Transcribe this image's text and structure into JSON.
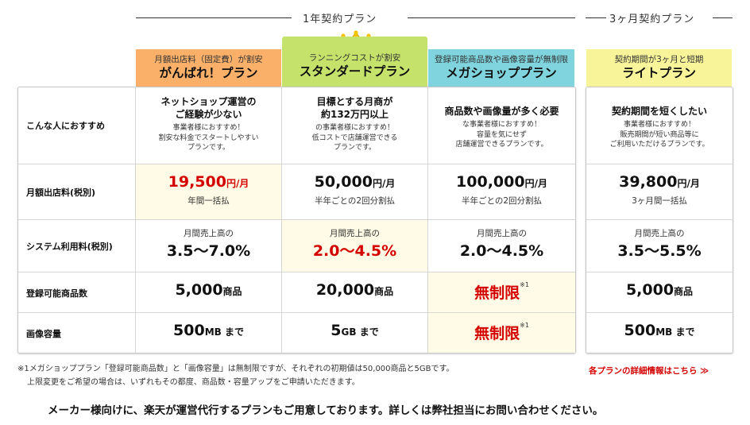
{
  "groups": {
    "annual": "1年契約プラン",
    "three_month": "3ヶ月契約プラン"
  },
  "colors": {
    "ganbare": "#fbb06a",
    "standard": "#c5e36b",
    "mega": "#7fd4dd",
    "light": "#f8f49a",
    "highlight": "#fffbe6",
    "accent_red": "#d40000"
  },
  "plans": [
    {
      "sub": "月額出店料（固定費）が割安",
      "name": "がんばれ！プラン"
    },
    {
      "sub": "ランニングコストが割安",
      "name": "スタンダードプラン"
    },
    {
      "sub": "登録可能商品数や画像容量が無制限",
      "name": "メガショッププラン"
    },
    {
      "sub": "契約期間が3ヶ月と短期",
      "name": "ライトプラン"
    }
  ],
  "crown_icon": "crown-icon",
  "row_labels": [
    "こんな人におすすめ",
    "月額出店料(税別)",
    "システム利用料(税別)",
    "登録可能商品数",
    "画像容量"
  ],
  "recommend": [
    {
      "title": "ネットショップ運営の\nご経験が少ない",
      "desc": "事業者様におすすめ！\n割安な料金でスタートしやすい\nプランです。"
    },
    {
      "title": "目標とする月商が\n約132万円以上",
      "desc": "の事業者様におすすめ！\n低コストで店舗運営できる\nプランです。"
    },
    {
      "title": "商品数や画像量が多く必要",
      "desc": "な事業者様におすすめ！\n容量を気にせず\n店舗運営できるプランです。"
    },
    {
      "title": "契約期間を短くしたい",
      "desc": "事業者様におすすめ！\n販売期間が短い商品等に\nご利用いただけるプランです。"
    }
  ],
  "fee": [
    {
      "amount": "19,500",
      "unit": "円/月",
      "note": "年間一括払"
    },
    {
      "amount": "50,000",
      "unit": "円/月",
      "note": "半年ごとの2回分割払"
    },
    {
      "amount": "100,000",
      "unit": "円/月",
      "note": "半年ごとの2回分割払"
    },
    {
      "amount": "39,800",
      "unit": "円/月",
      "note": "3ヶ月間一括払"
    }
  ],
  "system": [
    {
      "top": "月間売上高の",
      "value": "3.5〜7.0%"
    },
    {
      "top": "月間売上高の",
      "value": "2.0〜4.5%"
    },
    {
      "top": "月間売上高の",
      "value": "2.0〜4.5%"
    },
    {
      "top": "月間売上高の",
      "value": "3.5〜5.5%"
    }
  ],
  "items": [
    {
      "value": "5,000",
      "unit": "商品"
    },
    {
      "value": "20,000",
      "unit": "商品"
    },
    {
      "value": "無制限",
      "unit": "※1"
    },
    {
      "value": "5,000",
      "unit": "商品"
    }
  ],
  "images": [
    {
      "value": "500",
      "unit": "MB まで"
    },
    {
      "value": "5",
      "unit": "GB まで"
    },
    {
      "value": "無制限",
      "unit": "※1"
    },
    {
      "value": "500",
      "unit": "MB まで"
    }
  ],
  "footnotes": [
    "※1メガショッププラン「登録可能商品数」と「画像容量」は無制限ですが、それぞれの初期値は50,000商品と5GBです。",
    "上限変更をご希望の場合は、いずれもその都度、商品数・容量アップをご申請いただきます。"
  ],
  "detail_link": "各プランの詳細情報はこちら ≫",
  "bottom_message": "メーカー様向けに、楽天が運営代行するプランもご用意しております。詳しくは弊社担当にお問い合わせください。"
}
